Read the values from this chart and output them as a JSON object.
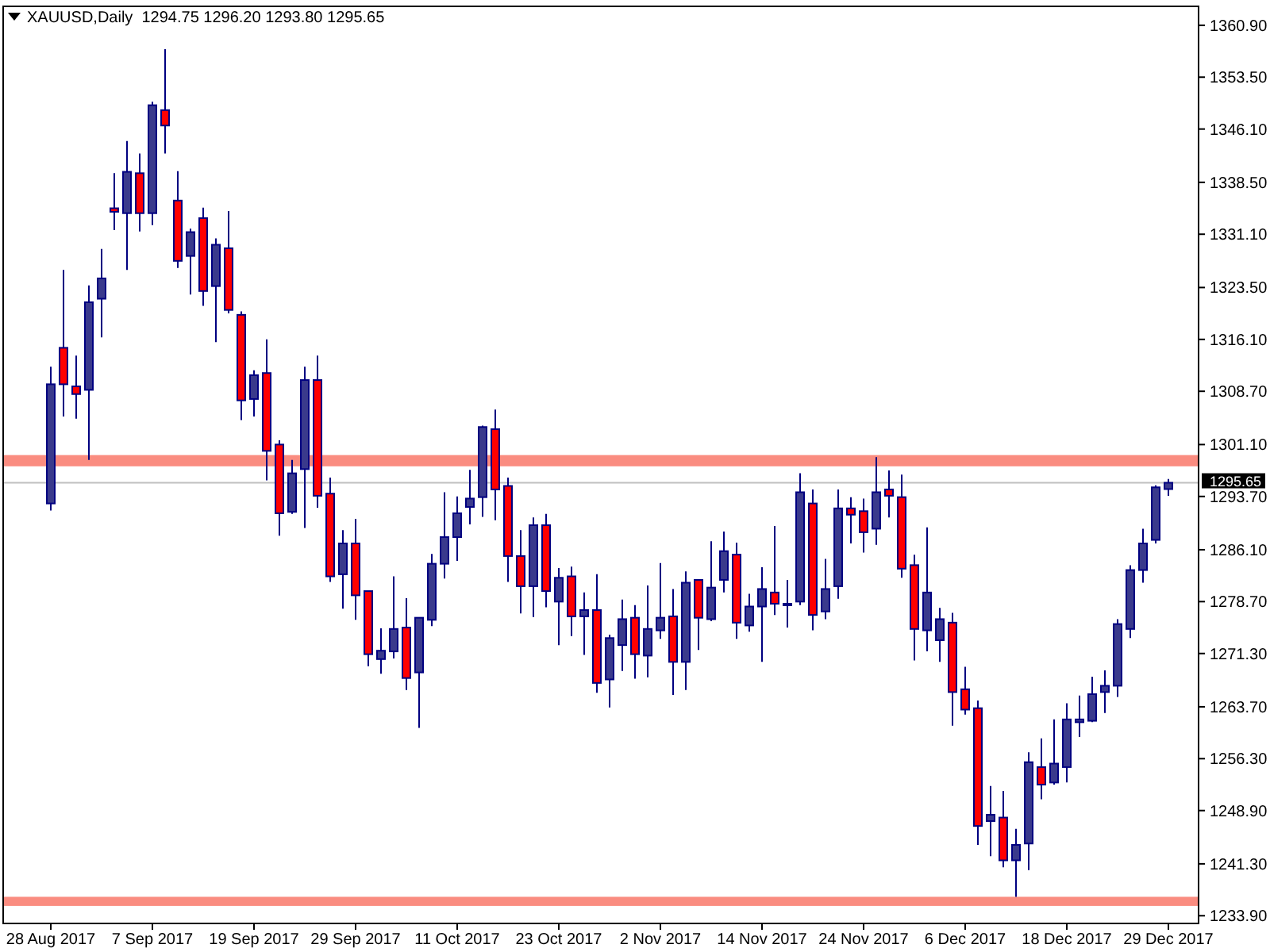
{
  "chart_data": {
    "type": "candlestick",
    "title": "XAUUSD,Daily  1294.75 1296.20 1293.80 1295.65",
    "categories": [
      "28 Aug 2017",
      null,
      null,
      null,
      null,
      null,
      null,
      null,
      "7 Sep 2017",
      null,
      null,
      null,
      null,
      null,
      null,
      null,
      "19 Sep 2017",
      null,
      null,
      null,
      null,
      null,
      null,
      null,
      "29 Sep 2017",
      null,
      null,
      null,
      null,
      null,
      null,
      null,
      "11 Oct 2017",
      null,
      null,
      null,
      null,
      null,
      null,
      null,
      "23 Oct 2017",
      null,
      null,
      null,
      null,
      null,
      null,
      null,
      "2 Nov 2017",
      null,
      null,
      null,
      null,
      null,
      null,
      null,
      "14 Nov 2017",
      null,
      null,
      null,
      null,
      null,
      null,
      null,
      "24 Nov 2017",
      null,
      null,
      null,
      null,
      null,
      null,
      null,
      "6 Dec 2017",
      null,
      null,
      null,
      null,
      null,
      null,
      null,
      "18 Dec 2017",
      null,
      null,
      null,
      null,
      null,
      null,
      null,
      "29 Dec 2017"
    ],
    "ohlc": [
      [
        1292.7,
        1312.2,
        1291.7,
        1309.7
      ],
      [
        1314.9,
        1326.0,
        1305.1,
        1309.7
      ],
      [
        1309.4,
        1313.8,
        1304.8,
        1308.3
      ],
      [
        1308.9,
        1323.8,
        1298.9,
        1321.4
      ],
      [
        1321.9,
        1329.0,
        1316.4,
        1324.8
      ],
      [
        1334.8,
        1339.8,
        1331.7,
        1334.3
      ],
      [
        1334.1,
        1344.4,
        1326.0,
        1340.0
      ],
      [
        1339.8,
        1342.6,
        1331.5,
        1334.1
      ],
      [
        1334.1,
        1350.0,
        1332.4,
        1349.5
      ],
      [
        1348.8,
        1357.5,
        1342.6,
        1346.6
      ],
      [
        1335.9,
        1340.1,
        1326.3,
        1327.3
      ],
      [
        1328.0,
        1331.9,
        1322.5,
        1331.4
      ],
      [
        1333.4,
        1334.9,
        1320.9,
        1323.0
      ],
      [
        1323.7,
        1330.5,
        1315.7,
        1329.6
      ],
      [
        1329.1,
        1334.4,
        1319.8,
        1320.3
      ],
      [
        1319.6,
        1320.1,
        1304.6,
        1307.4
      ],
      [
        1307.6,
        1311.7,
        1305.1,
        1311.0
      ],
      [
        1311.3,
        1316.1,
        1296.0,
        1300.2
      ],
      [
        1301.1,
        1301.7,
        1288.1,
        1291.3
      ],
      [
        1291.5,
        1298.9,
        1291.2,
        1297.0
      ],
      [
        1297.6,
        1312.2,
        1289.2,
        1310.3
      ],
      [
        1310.3,
        1313.8,
        1292.1,
        1293.8
      ],
      [
        1294.1,
        1296.4,
        1281.5,
        1282.3
      ],
      [
        1282.6,
        1288.9,
        1277.7,
        1287.0
      ],
      [
        1287.0,
        1290.5,
        1276.1,
        1279.6
      ],
      [
        1280.2,
        1280.2,
        1269.5,
        1271.2
      ],
      [
        1270.5,
        1274.9,
        1268.4,
        1271.7
      ],
      [
        1271.6,
        1282.3,
        1270.6,
        1274.8
      ],
      [
        1275.0,
        1279.2,
        1266.1,
        1267.8
      ],
      [
        1268.6,
        1276.4,
        1260.7,
        1276.4
      ],
      [
        1276.1,
        1285.5,
        1275.2,
        1284.1
      ],
      [
        1284.1,
        1294.3,
        1282.0,
        1287.9
      ],
      [
        1287.9,
        1293.7,
        1284.5,
        1291.3
      ],
      [
        1292.2,
        1297.5,
        1289.7,
        1293.4
      ],
      [
        1293.6,
        1303.8,
        1290.8,
        1303.6
      ],
      [
        1303.3,
        1306.1,
        1290.3,
        1294.7
      ],
      [
        1295.2,
        1296.4,
        1281.5,
        1285.2
      ],
      [
        1285.2,
        1288.9,
        1277.0,
        1280.9
      ],
      [
        1280.9,
        1290.7,
        1276.5,
        1289.6
      ],
      [
        1289.6,
        1291.2,
        1277.9,
        1280.2
      ],
      [
        1278.7,
        1283.5,
        1272.5,
        1282.1
      ],
      [
        1282.3,
        1283.7,
        1273.8,
        1276.6
      ],
      [
        1276.6,
        1280.0,
        1271.1,
        1277.5
      ],
      [
        1277.5,
        1282.6,
        1265.7,
        1267.1
      ],
      [
        1267.6,
        1274.0,
        1263.6,
        1273.5
      ],
      [
        1272.5,
        1279.0,
        1268.8,
        1276.2
      ],
      [
        1276.4,
        1278.2,
        1267.7,
        1271.2
      ],
      [
        1271.0,
        1281.0,
        1267.9,
        1274.8
      ],
      [
        1274.6,
        1284.2,
        1273.4,
        1276.4
      ],
      [
        1276.6,
        1280.5,
        1265.4,
        1270.1
      ],
      [
        1270.1,
        1283.0,
        1266.1,
        1281.4
      ],
      [
        1281.8,
        1281.8,
        1271.8,
        1276.4
      ],
      [
        1276.2,
        1287.3,
        1275.9,
        1280.7
      ],
      [
        1281.8,
        1288.7,
        1280.0,
        1285.9
      ],
      [
        1285.4,
        1287.1,
        1273.4,
        1275.7
      ],
      [
        1275.3,
        1279.8,
        1274.4,
        1278.0
      ],
      [
        1278.0,
        1283.6,
        1270.1,
        1280.5
      ],
      [
        1280.0,
        1289.5,
        1276.8,
        1278.4
      ],
      [
        1278.2,
        1281.8,
        1275.0,
        1278.4
      ],
      [
        1278.7,
        1297.0,
        1278.2,
        1294.3
      ],
      [
        1292.7,
        1294.7,
        1274.6,
        1276.8
      ],
      [
        1277.3,
        1284.8,
        1276.2,
        1280.5
      ],
      [
        1280.9,
        1294.7,
        1279.1,
        1292.0
      ],
      [
        1292.0,
        1293.6,
        1287.0,
        1291.1
      ],
      [
        1291.6,
        1293.4,
        1285.7,
        1288.6
      ],
      [
        1289.1,
        1299.3,
        1286.8,
        1294.3
      ],
      [
        1294.7,
        1297.4,
        1290.7,
        1293.8
      ],
      [
        1293.6,
        1296.8,
        1282.1,
        1283.4
      ],
      [
        1283.9,
        1285.4,
        1270.3,
        1274.8
      ],
      [
        1274.6,
        1289.3,
        1271.6,
        1280.0
      ],
      [
        1273.2,
        1277.8,
        1270.1,
        1276.2
      ],
      [
        1275.7,
        1277.1,
        1261.0,
        1265.8
      ],
      [
        1266.2,
        1269.4,
        1262.6,
        1263.3
      ],
      [
        1263.5,
        1264.6,
        1244.0,
        1246.7
      ],
      [
        1247.4,
        1252.4,
        1242.4,
        1248.3
      ],
      [
        1247.9,
        1251.7,
        1240.8,
        1241.8
      ],
      [
        1241.8,
        1246.3,
        1236.6,
        1244.0
      ],
      [
        1244.2,
        1257.2,
        1240.4,
        1255.8
      ],
      [
        1255.1,
        1259.2,
        1250.5,
        1252.6
      ],
      [
        1252.9,
        1261.9,
        1252.6,
        1255.6
      ],
      [
        1255.1,
        1264.2,
        1252.9,
        1261.9
      ],
      [
        1261.5,
        1265.3,
        1259.4,
        1261.9
      ],
      [
        1261.7,
        1268.0,
        1261.5,
        1265.5
      ],
      [
        1265.8,
        1268.9,
        1262.8,
        1266.7
      ],
      [
        1266.7,
        1276.2,
        1265.1,
        1275.5
      ],
      [
        1274.8,
        1283.9,
        1273.5,
        1283.2
      ],
      [
        1283.2,
        1289.1,
        1281.4,
        1287.0
      ],
      [
        1287.5,
        1295.3,
        1287.0,
        1295.0
      ],
      [
        1294.75,
        1296.2,
        1293.8,
        1295.65
      ]
    ],
    "ylim": [
      1232.8,
      1363.6
    ],
    "yticks": [
      {
        "value": 1360.9,
        "label": "1360.90"
      },
      {
        "value": 1353.5,
        "label": "1353.50"
      },
      {
        "value": 1346.1,
        "label": "1346.10"
      },
      {
        "value": 1338.5,
        "label": "1338.50"
      },
      {
        "value": 1331.1,
        "label": "1331.10"
      },
      {
        "value": 1323.5,
        "label": "1323.50"
      },
      {
        "value": 1316.1,
        "label": "1316.10"
      },
      {
        "value": 1308.7,
        "label": "1308.70"
      },
      {
        "value": 1301.1,
        "label": "1301.10"
      },
      {
        "value": 1293.7,
        "label": "1293.70"
      },
      {
        "value": 1286.1,
        "label": "1286.10"
      },
      {
        "value": 1278.7,
        "label": "1278.70"
      },
      {
        "value": 1271.3,
        "label": "1271.30"
      },
      {
        "value": 1263.7,
        "label": "1263.70"
      },
      {
        "value": 1256.3,
        "label": "1256.30"
      },
      {
        "value": 1248.9,
        "label": "1248.90"
      },
      {
        "value": 1241.3,
        "label": "1241.30"
      },
      {
        "value": 1233.9,
        "label": "1233.90"
      }
    ],
    "ref_lines": [
      {
        "axis": "y",
        "value": 1295.65,
        "label": "1295.65",
        "color": "#c0c0c0"
      }
    ],
    "bands": [
      {
        "axis": "y",
        "from": 1298.0,
        "to": 1299.6,
        "color": "#fa8072"
      },
      {
        "axis": "y",
        "from": 1235.3,
        "to": 1236.6,
        "color": "#fa8072"
      }
    ],
    "grid": false
  }
}
